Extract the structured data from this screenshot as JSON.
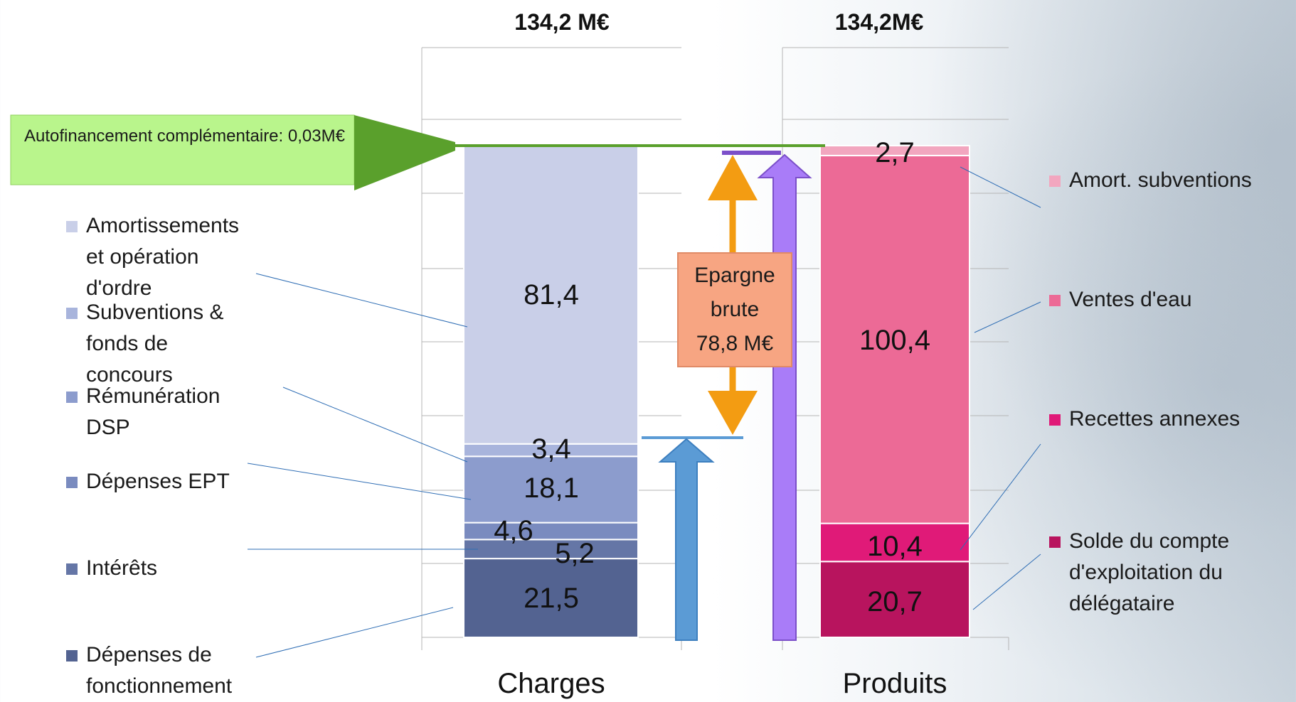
{
  "chart_data": {
    "type": "bar",
    "stacked": true,
    "categories": [
      "Charges",
      "Produits"
    ],
    "totals": [
      "134,2 M€",
      "134,2M€"
    ],
    "axis_max": 134.2,
    "grid": true,
    "charges": {
      "segments": [
        {
          "name": "Dépenses de fonctionnement",
          "value": 21.5,
          "label": "21,5",
          "color": "#536391"
        },
        {
          "name": "Intérêts",
          "value": 5.2,
          "label": "5,2",
          "color": "#6576a6"
        },
        {
          "name": "Dépenses EPT",
          "value": 4.6,
          "label": "4,6",
          "color": "#7a8bbf"
        },
        {
          "name": "Rémunération DSP",
          "value": 18.1,
          "label": "18,1",
          "color": "#8c9ccd"
        },
        {
          "name": "Subventions & fonds de concours",
          "value": 3.4,
          "label": "3,4",
          "color": "#a8b4dc"
        },
        {
          "name": "Amortissements et opération d'ordre",
          "value": 81.4,
          "label": "81,4",
          "color": "#c9cfe8"
        }
      ]
    },
    "produits": {
      "segments": [
        {
          "name": "Solde du compte d'exploitation du délégataire",
          "value": 20.7,
          "label": "20,7",
          "color": "#b8145e"
        },
        {
          "name": "Recettes annexes",
          "value": 10.4,
          "label": "10,4",
          "color": "#e01a78"
        },
        {
          "name": "Ventes d'eau",
          "value": 100.4,
          "label": "100,4",
          "color": "#ec6a96"
        },
        {
          "name": "Amort. subventions",
          "value": 2.7,
          "label": "2,7",
          "color": "#f2a6bf"
        }
      ]
    },
    "annotations": {
      "autofinancement": "Autofinancement complémentaire: 0,03M€",
      "epargne": "Epargne\nbrute\n78,8 M€"
    }
  },
  "legend_left": [
    {
      "label": "Amortissements\net opération\nd'ordre",
      "color": "#c9cfe8"
    },
    {
      "label": "Subventions &\nfonds de\nconcours",
      "color": "#a8b4dc"
    },
    {
      "label": "Rémunération\nDSP",
      "color": "#8c9ccd"
    },
    {
      "label": "Dépenses EPT",
      "color": "#7a8bbf"
    },
    {
      "label": "Intérêts",
      "color": "#6576a6"
    },
    {
      "label": "Dépenses de\nfonctionnement",
      "color": "#536391"
    }
  ],
  "legend_right": [
    {
      "label": "Amort. subventions",
      "color": "#f2a6bf"
    },
    {
      "label": "Ventes d'eau",
      "color": "#ec6a96"
    },
    {
      "label": "Recettes annexes",
      "color": "#e01a78"
    },
    {
      "label": "Solde du compte\nd'exploitation du\ndélégataire",
      "color": "#b8145e"
    }
  ],
  "colors": {
    "autofin_box": "#b9f58c",
    "autofin_arrow": "#5aa02c",
    "epargne_arrow": "#f39c12",
    "blue_arrow": "#5b9bd5",
    "purple_arrow": "#a97cf8"
  }
}
